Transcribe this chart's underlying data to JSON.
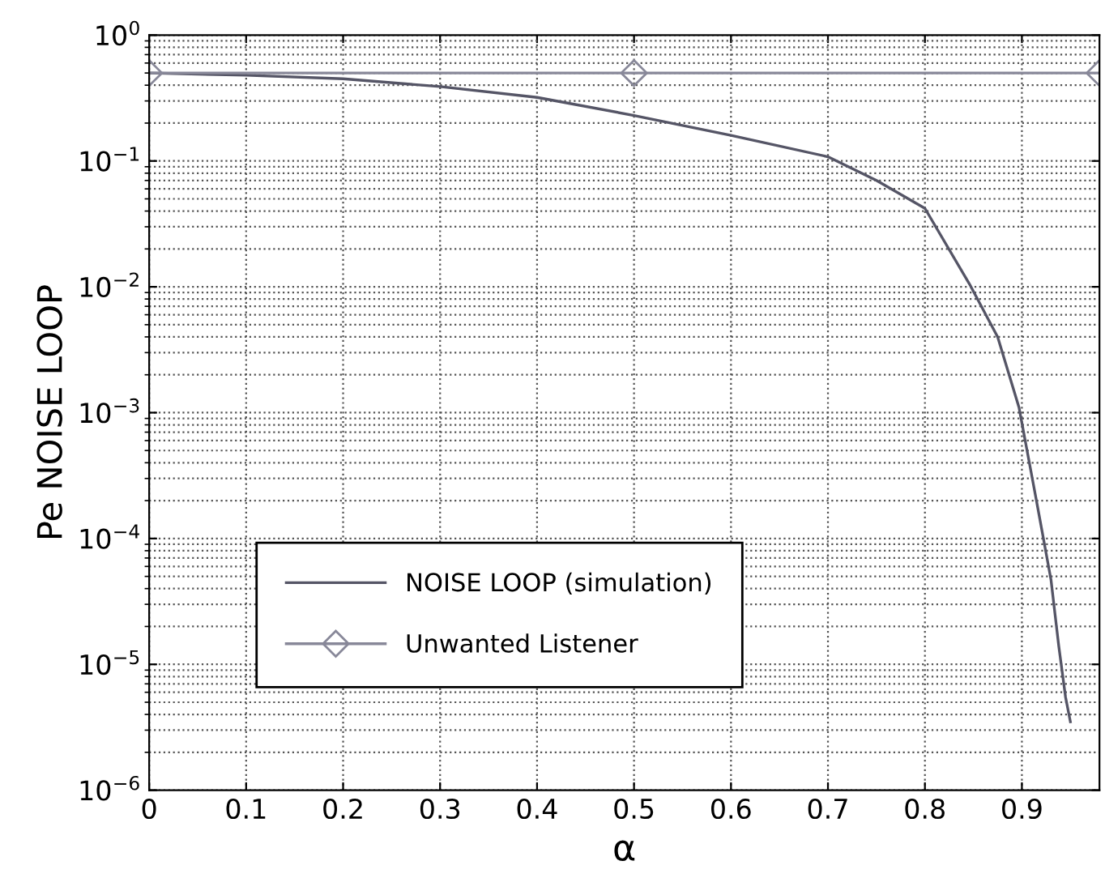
{
  "chart_data": {
    "type": "line",
    "xlabel": "α",
    "ylabel": "Pe NOISE LOOP",
    "log": "y",
    "grid": true,
    "legend": "bottom left",
    "xlim": [
      0,
      0.98
    ],
    "xticks": [
      0,
      0.1,
      0.2,
      0.3,
      0.4,
      0.5,
      0.6,
      0.7,
      0.8,
      0.9
    ],
    "ylim": [
      1e-06,
      1
    ],
    "yticks": [
      {
        "value": 1e-06,
        "label": "10$^{−6}$"
      },
      {
        "value": 1e-05,
        "label": "10$^{−5}$"
      },
      {
        "value": 0.0001,
        "label": "10$^{−4}$"
      },
      {
        "value": 0.001,
        "label": "10$^{−3}$"
      },
      {
        "value": 0.01,
        "label": "10$^{−2}$"
      },
      {
        "value": 0.1,
        "label": "10$^{−1}$"
      },
      {
        "value": 1,
        "label": "10$^{0}$"
      }
    ],
    "series": [
      {
        "name": "NOISE LOOP (simulation)",
        "color": "#555566",
        "marker": "none",
        "x": [
          0,
          0.1,
          0.2,
          0.3,
          0.4,
          0.5,
          0.6,
          0.7,
          0.75,
          0.8,
          0.846,
          0.875,
          0.897,
          0.915,
          0.93,
          0.938,
          0.945,
          0.95
        ],
        "values": [
          0.5,
          0.48,
          0.45,
          0.39,
          0.32,
          0.23,
          0.16,
          0.108,
          0.07,
          0.042,
          0.0105,
          0.004,
          0.0011,
          0.0002,
          4.7e-05,
          1.4e-05,
          5.5e-06,
          3.5e-06
        ]
      },
      {
        "name": "Unwanted Listener",
        "color": "#888899",
        "marker": "diamond",
        "x": [
          0,
          0.5,
          0.98
        ],
        "values": [
          0.5,
          0.5,
          0.5
        ]
      }
    ]
  }
}
